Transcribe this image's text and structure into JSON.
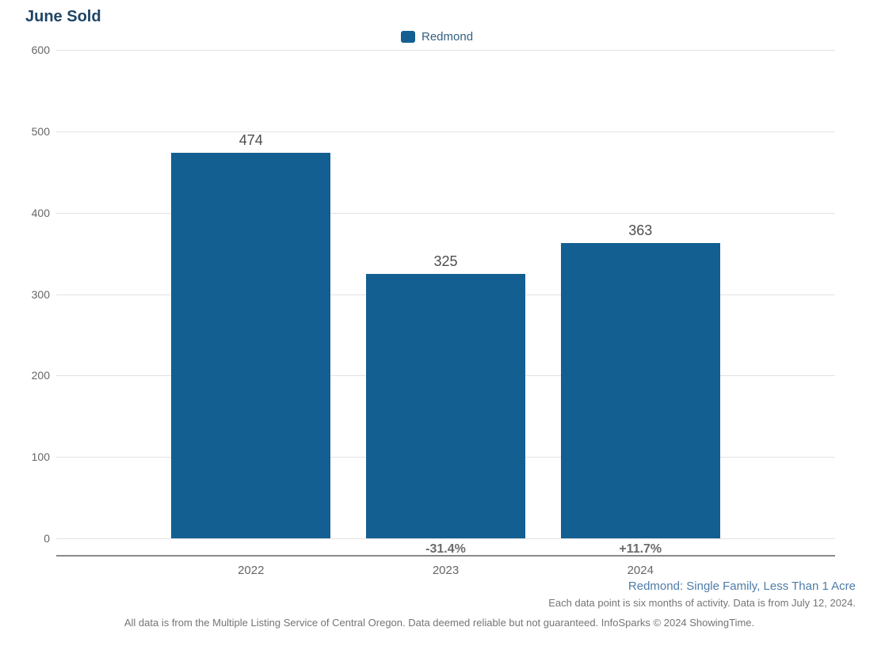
{
  "page": {
    "title": "June Sold"
  },
  "legend": {
    "label": "Redmond",
    "swatch_color": "#135f92"
  },
  "chart_data": {
    "type": "bar",
    "title": "June Sold",
    "categories": [
      "2022",
      "2023",
      "2024"
    ],
    "series": [
      {
        "name": "Redmond",
        "values": [
          474,
          325,
          363
        ]
      }
    ],
    "value_labels": [
      "474",
      "325",
      "363"
    ],
    "change_labels": [
      "",
      "-31.4%",
      "+11.7%"
    ],
    "ylabel": "",
    "xlabel": "",
    "ylim": [
      0,
      600
    ],
    "yticks": [
      0,
      100,
      200,
      300,
      400,
      500,
      600
    ],
    "grid": true,
    "legend_position": "top-center",
    "bar_color": "#135f92"
  },
  "footer": {
    "segment_label": "Redmond: Single Family, Less Than 1 Acre",
    "data_note": "Each data point is six months of activity. Data is from July 12, 2024.",
    "disclaimer": "All data is from the Multiple Listing Service of Central Oregon. Data deemed reliable but not guaranteed. InfoSparks © 2024 ShowingTime."
  },
  "colors": {
    "title": "#1f4566",
    "bar": "#135f92",
    "gridline": "#e2e2e2",
    "axis_line": "#8a8a8a",
    "tick_label": "#666666",
    "value_label": "#4d4d4d",
    "change_label": "#6b6b6b",
    "segment_label": "#4d7ca9",
    "footnote": "#757575"
  }
}
